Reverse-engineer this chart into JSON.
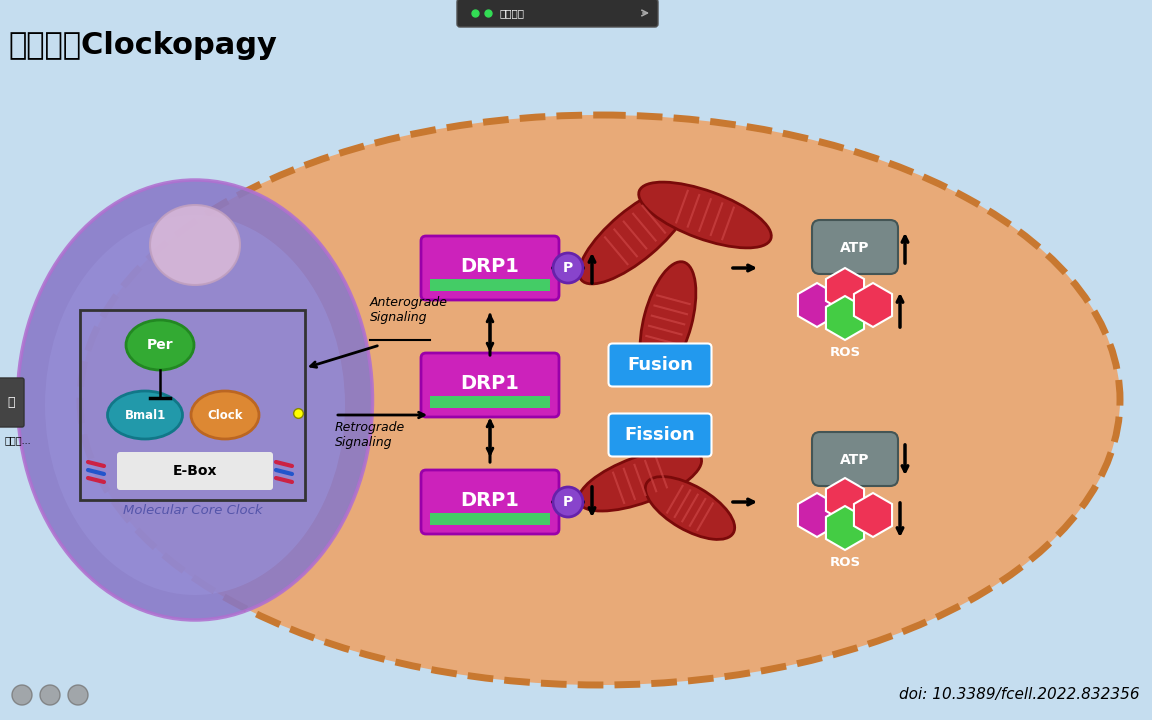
{
  "title": "线粒体和Clockopagy",
  "doi_text": "doi: 10.3389/fcell.2022.832356",
  "bg_color": "#c5ddef",
  "cell_outer_color": "#c87830",
  "cell_inner_color": "#e8aa78",
  "nucleus_outer_color": "#8878c8",
  "nucleus_inner_color": "#9890d8",
  "tencent_text": "腾讯会议"
}
